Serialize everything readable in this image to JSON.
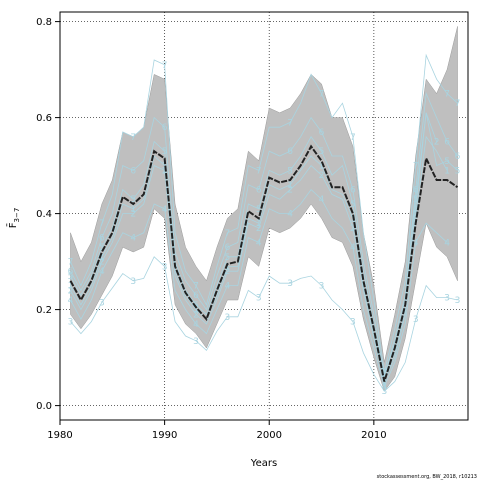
{
  "chart_data": {
    "type": "line",
    "xlabel": "Years",
    "ylabel": "F̄",
    "ylabel_sub": "3−7",
    "xlim": [
      1980,
      2019
    ],
    "ylim": [
      -0.03,
      0.82
    ],
    "x_ticks": [
      1980,
      1990,
      2000,
      2010
    ],
    "y_ticks": [
      0.0,
      0.2,
      0.4,
      0.6,
      0.8
    ],
    "y_tick_labels": [
      "0.0",
      "0.2",
      "0.4",
      "0.6",
      "0.8"
    ],
    "grid": true,
    "credit": "stockassessment.org, BW_2018, r10213",
    "colors": {
      "band": "#bfbfbf",
      "estimate": "#222222",
      "retro": "#a9d4e0",
      "grid": "#333333"
    },
    "years": [
      1981,
      1982,
      1983,
      1984,
      1985,
      1986,
      1987,
      1988,
      1989,
      1990,
      1991,
      1992,
      1993,
      1994,
      1995,
      1996,
      1997,
      1998,
      1999,
      2000,
      2001,
      2002,
      2003,
      2004,
      2005,
      2006,
      2007,
      2008,
      2009,
      2010,
      2011,
      2012,
      2013,
      2014,
      2015,
      2016,
      2017,
      2018
    ],
    "estimate": [
      0.26,
      0.22,
      0.26,
      0.32,
      0.36,
      0.435,
      0.42,
      0.44,
      0.53,
      0.515,
      0.29,
      0.235,
      0.205,
      0.18,
      0.24,
      0.295,
      0.3,
      0.405,
      0.39,
      0.475,
      0.465,
      0.47,
      0.5,
      0.54,
      0.51,
      0.455,
      0.455,
      0.4,
      0.26,
      0.16,
      0.05,
      0.12,
      0.21,
      0.38,
      0.515,
      0.47,
      0.47,
      0.455
    ],
    "upper": [
      0.36,
      0.3,
      0.34,
      0.42,
      0.47,
      0.57,
      0.56,
      0.58,
      0.69,
      0.68,
      0.42,
      0.33,
      0.29,
      0.26,
      0.33,
      0.39,
      0.41,
      0.53,
      0.51,
      0.62,
      0.61,
      0.62,
      0.65,
      0.69,
      0.67,
      0.6,
      0.6,
      0.54,
      0.36,
      0.25,
      0.09,
      0.19,
      0.3,
      0.52,
      0.68,
      0.65,
      0.7,
      0.79
    ],
    "lower": [
      0.19,
      0.16,
      0.19,
      0.23,
      0.27,
      0.33,
      0.32,
      0.33,
      0.41,
      0.39,
      0.21,
      0.17,
      0.15,
      0.12,
      0.17,
      0.22,
      0.22,
      0.31,
      0.29,
      0.37,
      0.36,
      0.37,
      0.39,
      0.42,
      0.39,
      0.35,
      0.34,
      0.29,
      0.18,
      0.1,
      0.03,
      0.06,
      0.14,
      0.26,
      0.38,
      0.33,
      0.31,
      0.26
    ],
    "retrospective": [
      {
        "name": "1",
        "years": [
          1981,
          1982,
          1983,
          1984,
          1985,
          1986,
          1987,
          1988,
          1989,
          1990,
          1991,
          1992,
          1993,
          1994,
          1995,
          1996,
          1997,
          1998,
          1999,
          2000,
          2001,
          2002,
          2003,
          2004,
          2005,
          2006,
          2007,
          2008,
          2009,
          2010,
          2011,
          2012,
          2013,
          2014,
          2015,
          2016,
          2017
        ],
        "values": [
          0.25,
          0.21,
          0.25,
          0.31,
          0.35,
          0.42,
          0.41,
          0.43,
          0.52,
          0.5,
          0.28,
          0.23,
          0.2,
          0.18,
          0.23,
          0.29,
          0.29,
          0.39,
          0.38,
          0.46,
          0.45,
          0.46,
          0.49,
          0.52,
          0.5,
          0.45,
          0.44,
          0.39,
          0.25,
          0.15,
          0.05,
          0.11,
          0.2,
          0.39,
          0.56,
          0.53,
          0.49
        ]
      },
      {
        "name": "2",
        "years": [
          1981,
          1982,
          1983,
          1984,
          1985,
          1986,
          1987,
          1988,
          1989,
          1990,
          1991,
          1992,
          1993,
          1994,
          1995,
          1996,
          1997,
          1998,
          1999,
          2000,
          2001,
          2002,
          2003,
          2004,
          2005,
          2006,
          2007,
          2008,
          2009,
          2010,
          2011,
          2012,
          2013,
          2014,
          2015,
          2016
        ],
        "values": [
          0.24,
          0.2,
          0.24,
          0.3,
          0.34,
          0.4,
          0.4,
          0.42,
          0.5,
          0.49,
          0.27,
          0.22,
          0.19,
          0.17,
          0.22,
          0.28,
          0.28,
          0.38,
          0.37,
          0.44,
          0.43,
          0.45,
          0.47,
          0.5,
          0.48,
          0.44,
          0.43,
          0.37,
          0.24,
          0.14,
          0.05,
          0.1,
          0.19,
          0.41,
          0.61,
          0.55
        ]
      },
      {
        "name": "3",
        "years": [
          1981,
          1982,
          1983,
          1984,
          1985,
          1986,
          1987,
          1988,
          1989,
          1990,
          1991,
          1992,
          1993,
          1994,
          1995,
          1996,
          1997,
          1998,
          1999,
          2000,
          2001,
          2002,
          2003,
          2004,
          2005,
          2006,
          2007,
          2008,
          2009,
          2010,
          2011,
          2012,
          2013,
          2014,
          2015,
          2016,
          2017,
          2018
        ],
        "values": [
          0.175,
          0.15,
          0.175,
          0.215,
          0.245,
          0.275,
          0.26,
          0.265,
          0.31,
          0.29,
          0.175,
          0.145,
          0.135,
          0.115,
          0.155,
          0.185,
          0.185,
          0.24,
          0.225,
          0.27,
          0.255,
          0.255,
          0.265,
          0.27,
          0.25,
          0.22,
          0.2,
          0.175,
          0.11,
          0.065,
          0.03,
          0.05,
          0.09,
          0.18,
          0.25,
          0.225,
          0.225,
          0.22
        ]
      },
      {
        "name": "4",
        "years": [
          1981,
          1982,
          1983,
          1984,
          1985,
          1986,
          1987,
          1988,
          1989,
          1990,
          1991,
          1992,
          1993,
          1994,
          1995,
          1996,
          1997,
          1998,
          1999,
          2000,
          2001,
          2002,
          2003,
          2004,
          2005,
          2006,
          2007,
          2008,
          2009,
          2010,
          2011,
          2012,
          2013,
          2014,
          2015,
          2016,
          2017
        ],
        "values": [
          0.22,
          0.18,
          0.22,
          0.28,
          0.32,
          0.36,
          0.35,
          0.36,
          0.42,
          0.41,
          0.24,
          0.2,
          0.17,
          0.15,
          0.2,
          0.25,
          0.25,
          0.35,
          0.34,
          0.41,
          0.4,
          0.4,
          0.42,
          0.45,
          0.43,
          0.39,
          0.37,
          0.33,
          0.2,
          0.12,
          0.04,
          0.09,
          0.17,
          0.34,
          0.38,
          0.36,
          0.34
        ]
      },
      {
        "name": "5",
        "years": [
          1981,
          1982,
          1983,
          1984,
          1985,
          1986,
          1987,
          1988,
          1989,
          1990,
          1991,
          1992,
          1993,
          1994,
          1995,
          1996,
          1997,
          1998,
          1999,
          2000,
          2001,
          2002,
          2003,
          2004,
          2005,
          2006,
          2007,
          2008,
          2009,
          2010,
          2011,
          2012,
          2013,
          2014,
          2015,
          2016,
          2017,
          2018
        ],
        "values": [
          0.27,
          0.23,
          0.27,
          0.33,
          0.37,
          0.45,
          0.43,
          0.46,
          0.55,
          0.53,
          0.3,
          0.24,
          0.21,
          0.19,
          0.25,
          0.31,
          0.31,
          0.42,
          0.41,
          0.49,
          0.48,
          0.49,
          0.52,
          0.56,
          0.53,
          0.48,
          0.5,
          0.42,
          0.28,
          0.17,
          0.06,
          0.13,
          0.22,
          0.43,
          0.61,
          0.5,
          0.51,
          0.49
        ]
      },
      {
        "name": "6",
        "years": [
          1981,
          1982,
          1983,
          1984,
          1985,
          1986,
          1987,
          1988,
          1989,
          1990,
          1991,
          1992,
          1993,
          1994,
          1995,
          1996,
          1997,
          1998,
          1999,
          2000,
          2001,
          2002,
          2003,
          2004,
          2005,
          2006,
          2007,
          2008,
          2009,
          2010,
          2011,
          2012,
          2013,
          2014,
          2015,
          2016,
          2017,
          2018
        ],
        "values": [
          0.28,
          0.24,
          0.28,
          0.35,
          0.4,
          0.5,
          0.49,
          0.51,
          0.6,
          0.58,
          0.32,
          0.26,
          0.23,
          0.2,
          0.27,
          0.33,
          0.34,
          0.46,
          0.45,
          0.53,
          0.52,
          0.53,
          0.56,
          0.6,
          0.57,
          0.52,
          0.52,
          0.45,
          0.3,
          0.19,
          0.06,
          0.14,
          0.23,
          0.45,
          0.65,
          0.6,
          0.55,
          0.52
        ]
      },
      {
        "name": "7",
        "years": [
          1981,
          1982,
          1983,
          1984,
          1985,
          1986,
          1987,
          1988,
          1989,
          1990,
          1991,
          1992,
          1993,
          1994,
          1995,
          1996,
          1997,
          1998,
          1999,
          2000,
          2001,
          2002,
          2003,
          2004,
          2005,
          2006,
          2007,
          2008,
          2009,
          2010,
          2011,
          2012,
          2013,
          2014,
          2015,
          2016,
          2017,
          2018
        ],
        "values": [
          0.3,
          0.25,
          0.3,
          0.38,
          0.44,
          0.57,
          0.56,
          0.58,
          0.72,
          0.71,
          0.36,
          0.28,
          0.25,
          0.21,
          0.29,
          0.36,
          0.37,
          0.5,
          0.49,
          0.58,
          0.58,
          0.59,
          0.63,
          0.69,
          0.65,
          0.6,
          0.63,
          0.56,
          0.36,
          0.22,
          0.07,
          0.16,
          0.26,
          0.5,
          0.73,
          0.68,
          0.65,
          0.63
        ]
      }
    ]
  }
}
